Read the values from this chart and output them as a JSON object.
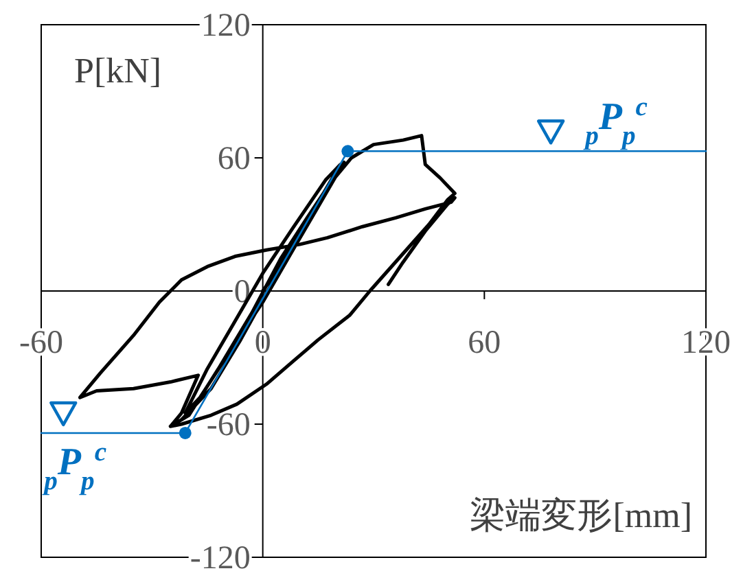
{
  "chart_data": {
    "type": "line",
    "xlabel": "梁端変形[mm]",
    "ylabel": "P[kN]",
    "xlim": [
      -60,
      120
    ],
    "ylim": [
      -120,
      120
    ],
    "xticks": [
      -60,
      0,
      60,
      120
    ],
    "yticks": [
      -120,
      -60,
      0,
      60,
      120
    ],
    "grid": false,
    "line_style": "solid",
    "series": [
      {
        "color": "#000000",
        "marker": "none",
        "x": [
          0,
          5,
          10,
          15,
          21,
          17,
          8,
          0,
          -8,
          -15,
          -21,
          -17,
          -8,
          0,
          8,
          15,
          22,
          19,
          10,
          2,
          -6,
          -14,
          -22,
          -25,
          -20,
          -12,
          -3,
          5,
          12,
          18,
          24,
          30,
          38,
          43,
          44,
          48,
          52,
          50,
          45,
          37,
          29,
          23.5,
          15,
          8,
          1,
          -7,
          -14,
          -22,
          -25,
          -22,
          -17.5,
          -25,
          -35,
          -45,
          -49.5,
          -44,
          -35,
          -28,
          -22,
          -15,
          -7.5,
          1,
          10,
          17.5,
          27,
          36,
          44,
          51,
          52,
          50,
          44,
          38,
          34
        ],
        "values": [
          0,
          12,
          27,
          40,
          57,
          50,
          28,
          8,
          -15,
          -35,
          -55,
          -48,
          -25,
          -5,
          18,
          38,
          58,
          50,
          25,
          2,
          -22,
          -44,
          -58,
          -61,
          -56,
          -35,
          -10,
          15,
          33,
          48,
          60,
          66,
          68,
          70,
          57,
          51,
          44,
          41,
          30,
          15,
          0,
          -11,
          -22,
          -32,
          -42,
          -51,
          -56,
          -60,
          -61,
          -55,
          -38,
          -41,
          -44,
          -45,
          -48,
          -37,
          -20,
          -5,
          5,
          11,
          15.6,
          18.5,
          21,
          24,
          29,
          33,
          37,
          40,
          42,
          39,
          27,
          13,
          3
        ]
      },
      {
        "color": "#0070c0",
        "marker": "none",
        "x": [
          -60,
          -21,
          23,
          120
        ],
        "values": [
          -64,
          -64,
          63,
          63
        ]
      },
      {
        "type": "scatter",
        "color": "#0070c0",
        "marker": "circle",
        "x": [
          -21,
          23
        ],
        "values": [
          -64,
          63
        ]
      }
    ],
    "annotations": [
      {
        "text": "$_{p}$P$_{p}$$^{c}$",
        "x": 78,
        "y": 63
      },
      {
        "text": "$_{p}$P$_{p}$$^{c}$",
        "x": -54,
        "y": -64
      }
    ]
  }
}
